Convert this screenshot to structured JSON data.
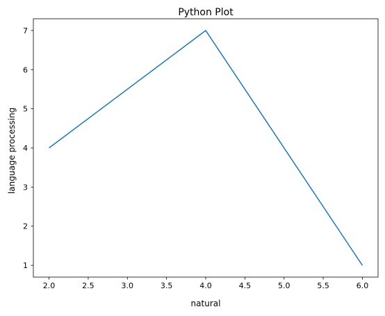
{
  "chart_data": {
    "type": "line",
    "title": "Python Plot",
    "xlabel": "natural",
    "ylabel": "language processing",
    "x": [
      2,
      4,
      6
    ],
    "series": [
      {
        "values": [
          4,
          7,
          1
        ],
        "color": "#1f77b4"
      }
    ],
    "xlim": [
      1.8,
      6.2
    ],
    "ylim": [
      0.7,
      7.3
    ],
    "x_ticks": [
      {
        "value": 2.0,
        "label": "2.0"
      },
      {
        "value": 2.5,
        "label": "2.5"
      },
      {
        "value": 3.0,
        "label": "3.0"
      },
      {
        "value": 3.5,
        "label": "3.5"
      },
      {
        "value": 4.0,
        "label": "4.0"
      },
      {
        "value": 4.5,
        "label": "4.5"
      },
      {
        "value": 5.0,
        "label": "5.0"
      },
      {
        "value": 5.5,
        "label": "5.5"
      },
      {
        "value": 6.0,
        "label": "6.0"
      }
    ],
    "y_ticks": [
      {
        "value": 1,
        "label": "1"
      },
      {
        "value": 2,
        "label": "2"
      },
      {
        "value": 3,
        "label": "3"
      },
      {
        "value": 4,
        "label": "4"
      },
      {
        "value": 5,
        "label": "5"
      },
      {
        "value": 6,
        "label": "6"
      },
      {
        "value": 7,
        "label": "7"
      }
    ],
    "grid": false,
    "legend": "none"
  }
}
